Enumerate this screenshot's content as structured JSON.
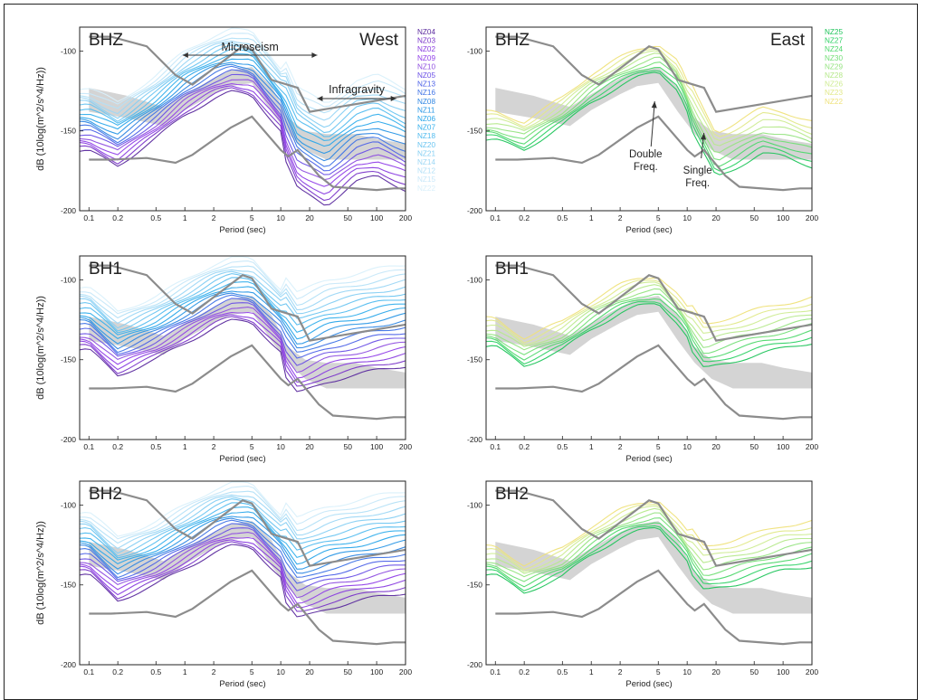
{
  "figure": {
    "x_axis_label": "Period (sec)",
    "y_axis_label": "dB (10log(m^2/s^4/Hz))",
    "x_ticks": [
      "0.1",
      "0.2",
      "0.5",
      "1",
      "2",
      "5",
      "10",
      "20",
      "50",
      "100",
      "200"
    ],
    "x_tick_values": [
      0.1,
      0.2,
      0.5,
      1,
      2,
      5,
      10,
      20,
      50,
      100,
      200
    ],
    "y_ticks": [
      -100,
      -150,
      -200
    ],
    "legend_west": {
      "stations": [
        "NZ04",
        "NZ03",
        "NZ02",
        "NZ09",
        "NZ10",
        "NZ05",
        "NZ13",
        "NZ16",
        "NZ08",
        "NZ11",
        "NZ06",
        "NZ07",
        "NZ18",
        "NZ20",
        "NZ21",
        "NZ14",
        "NZ12",
        "NZ15",
        "NZ22"
      ],
      "colors": [
        "#5b2a9e",
        "#7a35c9",
        "#8a3ee0",
        "#9140e8",
        "#8f4fe0",
        "#6a50e6",
        "#4d62e8",
        "#3f73e6",
        "#2f86e3",
        "#2a97e6",
        "#2aa6ea",
        "#37b0ec",
        "#52bcef",
        "#6bc5f1",
        "#86cff3",
        "#9dd7f5",
        "#b3e0f7",
        "#c8e8f9",
        "#d9f0fb"
      ]
    },
    "legend_east": {
      "stations": [
        "NZ25",
        "NZ27",
        "NZ24",
        "NZ30",
        "NZ29",
        "NZ28",
        "NZ26",
        "NZ23",
        "NZ22"
      ],
      "colors": [
        "#1ec45a",
        "#2fd266",
        "#4ed86c",
        "#73df77",
        "#96e482",
        "#b6e98c",
        "#cfec93",
        "#e2e98a",
        "#efe27a"
      ]
    },
    "panels": [
      {
        "component": "BHZ",
        "region": "West",
        "labels": {
          "component": "BHZ",
          "region": "West",
          "microseism": "Microseism",
          "infragravity": "Infragravity"
        }
      },
      {
        "component": "BHZ",
        "region": "East",
        "labels": {
          "component": "BHZ",
          "region": "East",
          "double_freq": [
            "Double",
            "Freq."
          ],
          "single_freq": [
            "Single",
            "Freq."
          ]
        }
      },
      {
        "component": "BH1",
        "region": "West",
        "labels": {
          "component": "BH1"
        }
      },
      {
        "component": "BH1",
        "region": "East",
        "labels": {
          "component": "BH1"
        }
      },
      {
        "component": "BH2",
        "region": "West",
        "labels": {
          "component": "BH2"
        }
      },
      {
        "component": "BH2",
        "region": "East",
        "labels": {
          "component": "BH2"
        }
      }
    ]
  },
  "chart_data": {
    "type": "line",
    "title": "",
    "xlabel": "Period (sec)",
    "ylabel": "dB (10log(m^2/s^4/Hz))",
    "x_scale": "log",
    "xlim": [
      0.08,
      200
    ],
    "ylim": [
      -200,
      -85
    ],
    "grid": false,
    "reference_curves": {
      "NHNM": [
        [
          0.1,
          -91
        ],
        [
          0.17,
          -91
        ],
        [
          0.4,
          -97
        ],
        [
          0.8,
          -115
        ],
        [
          1.2,
          -121
        ],
        [
          4,
          -97
        ],
        [
          5,
          -99
        ],
        [
          8,
          -118
        ],
        [
          15,
          -123
        ],
        [
          20,
          -138
        ],
        [
          200,
          -128
        ]
      ],
      "NLNM": [
        [
          0.1,
          -168
        ],
        [
          0.17,
          -168
        ],
        [
          0.4,
          -167
        ],
        [
          0.8,
          -170
        ],
        [
          1.2,
          -165
        ],
        [
          3,
          -148
        ],
        [
          5,
          -141
        ],
        [
          10,
          -162
        ],
        [
          12,
          -166
        ],
        [
          15,
          -162
        ],
        [
          25,
          -178
        ],
        [
          35,
          -185
        ],
        [
          100,
          -187
        ],
        [
          150,
          -186
        ],
        [
          200,
          -186
        ]
      ],
      "background_band_upper": [
        [
          0.1,
          -123
        ],
        [
          0.25,
          -128
        ],
        [
          0.6,
          -135
        ],
        [
          1,
          -127
        ],
        [
          2,
          -117
        ],
        [
          3,
          -112
        ],
        [
          5,
          -110
        ],
        [
          8,
          -122
        ],
        [
          12,
          -142
        ],
        [
          18,
          -150
        ],
        [
          30,
          -152
        ],
        [
          60,
          -152
        ],
        [
          100,
          -155
        ],
        [
          200,
          -158
        ]
      ],
      "background_band_lower": [
        [
          0.1,
          -138
        ],
        [
          0.25,
          -142
        ],
        [
          0.6,
          -147
        ],
        [
          1,
          -137
        ],
        [
          2,
          -127
        ],
        [
          3,
          -122
        ],
        [
          5,
          -120
        ],
        [
          8,
          -138
        ],
        [
          12,
          -152
        ],
        [
          18,
          -162
        ],
        [
          30,
          -168
        ],
        [
          60,
          -168
        ],
        [
          100,
          -168
        ],
        [
          200,
          -168
        ]
      ]
    },
    "series": [
      {
        "panel": "BHZ-West",
        "values": [
          [
            0.1,
            -143
          ],
          [
            0.2,
            -152
          ],
          [
            0.5,
            -135
          ],
          [
            1,
            -120
          ],
          [
            2,
            -110
          ],
          [
            3,
            -106
          ],
          [
            5,
            -108
          ],
          [
            10,
            -130
          ],
          [
            15,
            -155
          ],
          [
            30,
            -165
          ],
          [
            60,
            -150
          ],
          [
            100,
            -147
          ],
          [
            200,
            -155
          ]
        ]
      },
      {
        "panel": "BHZ-East",
        "values": [
          [
            0.1,
            -147
          ],
          [
            0.2,
            -153
          ],
          [
            0.5,
            -138
          ],
          [
            1,
            -123
          ],
          [
            2,
            -113
          ],
          [
            3,
            -108
          ],
          [
            5,
            -104
          ],
          [
            8,
            -115
          ],
          [
            12,
            -140
          ],
          [
            20,
            -165
          ],
          [
            30,
            -160
          ],
          [
            60,
            -150
          ],
          [
            100,
            -152
          ],
          [
            200,
            -158
          ]
        ]
      },
      {
        "panel": "BH1-West",
        "values": [
          [
            0.1,
            -124
          ],
          [
            0.2,
            -140
          ],
          [
            0.5,
            -130
          ],
          [
            1,
            -120
          ],
          [
            2,
            -110
          ],
          [
            3,
            -106
          ],
          [
            5,
            -107
          ],
          [
            10,
            -125
          ],
          [
            15,
            -140
          ],
          [
            30,
            -132
          ],
          [
            60,
            -128
          ],
          [
            100,
            -125
          ],
          [
            200,
            -122
          ]
        ]
      },
      {
        "panel": "BH1-East",
        "values": [
          [
            0.1,
            -133
          ],
          [
            0.2,
            -145
          ],
          [
            0.5,
            -135
          ],
          [
            1,
            -122
          ],
          [
            2,
            -112
          ],
          [
            3,
            -108
          ],
          [
            5,
            -106
          ],
          [
            8,
            -118
          ],
          [
            15,
            -142
          ],
          [
            30,
            -137
          ],
          [
            60,
            -132
          ],
          [
            100,
            -129
          ],
          [
            200,
            -125
          ]
        ]
      },
      {
        "panel": "BH2-West",
        "values": [
          [
            0.1,
            -124
          ],
          [
            0.2,
            -140
          ],
          [
            0.5,
            -130
          ],
          [
            1,
            -120
          ],
          [
            2,
            -110
          ],
          [
            3,
            -106
          ],
          [
            5,
            -107
          ],
          [
            10,
            -125
          ],
          [
            15,
            -140
          ],
          [
            30,
            -133
          ],
          [
            60,
            -129
          ],
          [
            100,
            -126
          ],
          [
            200,
            -123
          ]
        ]
      },
      {
        "panel": "BH2-East",
        "values": [
          [
            0.1,
            -135
          ],
          [
            0.2,
            -146
          ],
          [
            0.5,
            -136
          ],
          [
            1,
            -122
          ],
          [
            2,
            -112
          ],
          [
            3,
            -108
          ],
          [
            5,
            -105
          ],
          [
            8,
            -118
          ],
          [
            15,
            -140
          ],
          [
            30,
            -136
          ],
          [
            60,
            -131
          ],
          [
            100,
            -127
          ],
          [
            200,
            -124
          ]
        ]
      }
    ]
  }
}
